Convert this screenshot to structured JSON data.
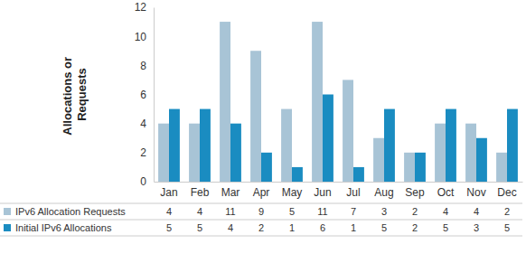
{
  "chart_data": {
    "type": "bar",
    "ylabel": "Allocations or Requests",
    "categories": [
      "Jan",
      "Feb",
      "Mar",
      "Apr",
      "May",
      "Jun",
      "Jul",
      "Aug",
      "Sep",
      "Oct",
      "Nov",
      "Dec"
    ],
    "series": [
      {
        "name": "IPv6 Allocation Requests",
        "color": "#a8c4d6",
        "values": [
          4,
          4,
          11,
          9,
          5,
          11,
          7,
          3,
          2,
          4,
          4,
          2
        ]
      },
      {
        "name": "Initial IPv6 Allocations",
        "color": "#1a8cc1",
        "values": [
          5,
          5,
          4,
          2,
          1,
          6,
          1,
          5,
          2,
          5,
          3,
          5
        ]
      }
    ],
    "ylim": [
      0,
      12
    ],
    "yticks": [
      0,
      2,
      4,
      6,
      8,
      10,
      12
    ],
    "grid": false
  }
}
